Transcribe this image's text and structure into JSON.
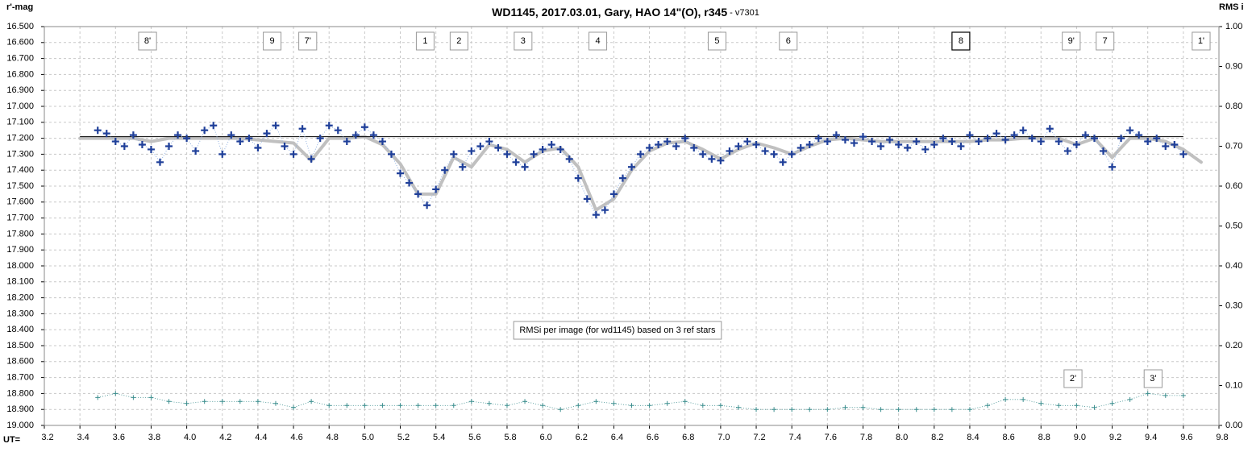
{
  "chart_data": {
    "type": "scatter",
    "title": "WD1145, 2017.03.01,  Gary, HAO 14\"(O), r345",
    "subtitle": " - v7301",
    "y_label": "r'-mag",
    "y2_label": "RMS i",
    "x_label": "UT=",
    "xlim": [
      3.2,
      9.8
    ],
    "ylim": [
      19.0,
      16.5
    ],
    "y2lim": [
      0,
      1
    ],
    "grid": true,
    "xticks": [
      3.2,
      3.4,
      3.6,
      3.8,
      {
        "value": 4,
        "label": "4.0"
      },
      4.2,
      4.4,
      4.6,
      4.8,
      {
        "value": 5,
        "label": "5.0"
      },
      5.2,
      5.4,
      5.6,
      5.8,
      {
        "value": 6,
        "label": "6.0"
      },
      6.2,
      6.4,
      6.6,
      6.8,
      {
        "value": 7,
        "label": "7.0"
      },
      7.2,
      7.4,
      7.6,
      7.8,
      {
        "value": 8,
        "label": "8.0"
      },
      8.2,
      8.4,
      8.6,
      8.8,
      {
        "value": 9,
        "label": "9.0"
      },
      9.2,
      9.4,
      9.6,
      9.8
    ],
    "yticks": [
      {
        "value": 16.5,
        "label": "16.500"
      },
      {
        "value": 16.6,
        "label": "16.600"
      },
      {
        "value": 16.7,
        "label": "16.700"
      },
      {
        "value": 16.8,
        "label": "16.800"
      },
      {
        "value": 16.9,
        "label": "16.900"
      },
      {
        "value": 17.0,
        "label": "17.000"
      },
      {
        "value": 17.1,
        "label": "17.100"
      },
      {
        "value": 17.2,
        "label": "17.200"
      },
      {
        "value": 17.3,
        "label": "17.300"
      },
      {
        "value": 17.4,
        "label": "17.400"
      },
      {
        "value": 17.5,
        "label": "17.500"
      },
      {
        "value": 17.6,
        "label": "17.600"
      },
      {
        "value": 17.7,
        "label": "17.700"
      },
      {
        "value": 17.8,
        "label": "17.800"
      },
      {
        "value": 17.9,
        "label": "17.900"
      },
      {
        "value": 18.0,
        "label": "18.000"
      },
      {
        "value": 18.1,
        "label": "18.100"
      },
      {
        "value": 18.2,
        "label": "18.200"
      },
      {
        "value": 18.3,
        "label": "18.300"
      },
      {
        "value": 18.4,
        "label": "18.400"
      },
      {
        "value": 18.5,
        "label": "18.500"
      },
      {
        "value": 18.6,
        "label": "18.600"
      },
      {
        "value": 18.7,
        "label": "18.700"
      },
      {
        "value": 18.8,
        "label": "18.800"
      },
      {
        "value": 18.9,
        "label": "18.900"
      },
      {
        "value": 19.0,
        "label": "19.000"
      }
    ],
    "y2ticks": [
      {
        "value": 1,
        "label": "1.00"
      },
      {
        "value": 0.9,
        "label": "0.90"
      },
      {
        "value": 0.8,
        "label": "0.80"
      },
      {
        "value": 0.7,
        "label": "0.70"
      },
      {
        "value": 0.6,
        "label": "0.60"
      },
      {
        "value": 0.5,
        "label": "0.50"
      },
      {
        "value": 0.4,
        "label": "0.40"
      },
      {
        "value": 0.3,
        "label": "0.30"
      },
      {
        "value": 0.2,
        "label": "0.20"
      },
      {
        "value": 0.1,
        "label": "0.10"
      },
      {
        "value": 0,
        "label": "0.00"
      }
    ],
    "series": [
      {
        "style": "plus",
        "color": "#1f3f99",
        "x": [
          3.5,
          3.55,
          3.6,
          3.65,
          3.7,
          3.75,
          3.8,
          3.85,
          3.9,
          3.95,
          4.0,
          4.05,
          4.1,
          4.15,
          4.2,
          4.25,
          4.3,
          4.35,
          4.4,
          4.45,
          4.5,
          4.55,
          4.6,
          4.65,
          4.7,
          4.75,
          4.8,
          4.85,
          4.9,
          4.95,
          5.0,
          5.05,
          5.1,
          5.15,
          5.2,
          5.25,
          5.3,
          5.35,
          5.4,
          5.45,
          5.5,
          5.55,
          5.6,
          5.65,
          5.7,
          5.75,
          5.8,
          5.85,
          5.9,
          5.95,
          6.0,
          6.05,
          6.1,
          6.15,
          6.2,
          6.25,
          6.3,
          6.35,
          6.4,
          6.45,
          6.5,
          6.55,
          6.6,
          6.65,
          6.7,
          6.75,
          6.8,
          6.85,
          6.9,
          6.95,
          7.0,
          7.05,
          7.1,
          7.15,
          7.2,
          7.25,
          7.3,
          7.35,
          7.4,
          7.45,
          7.5,
          7.55,
          7.6,
          7.65,
          7.7,
          7.75,
          7.8,
          7.85,
          7.9,
          7.95,
          8.0,
          8.05,
          8.1,
          8.15,
          8.2,
          8.25,
          8.3,
          8.35,
          8.4,
          8.45,
          8.5,
          8.55,
          8.6,
          8.65,
          8.7,
          8.75,
          8.8,
          8.85,
          8.9,
          8.95,
          9.0,
          9.05,
          9.1,
          9.15,
          9.2,
          9.25,
          9.3,
          9.35,
          9.4,
          9.45,
          9.5,
          9.55,
          9.6
        ],
        "values": [
          17.15,
          17.17,
          17.22,
          17.25,
          17.18,
          17.24,
          17.27,
          17.35,
          17.25,
          17.18,
          17.2,
          17.28,
          17.15,
          17.12,
          17.3,
          17.18,
          17.22,
          17.2,
          17.26,
          17.17,
          17.12,
          17.25,
          17.3,
          17.14,
          17.33,
          17.2,
          17.12,
          17.15,
          17.22,
          17.18,
          17.13,
          17.18,
          17.22,
          17.3,
          17.42,
          17.48,
          17.55,
          17.62,
          17.52,
          17.4,
          17.3,
          17.38,
          17.28,
          17.25,
          17.22,
          17.26,
          17.3,
          17.35,
          17.38,
          17.3,
          17.27,
          17.24,
          17.27,
          17.33,
          17.45,
          17.58,
          17.68,
          17.65,
          17.55,
          17.45,
          17.38,
          17.3,
          17.26,
          17.24,
          17.22,
          17.25,
          17.2,
          17.26,
          17.3,
          17.33,
          17.34,
          17.28,
          17.25,
          17.22,
          17.24,
          17.28,
          17.3,
          17.35,
          17.3,
          17.26,
          17.24,
          17.2,
          17.22,
          17.18,
          17.21,
          17.23,
          17.19,
          17.22,
          17.25,
          17.21,
          17.24,
          17.26,
          17.22,
          17.27,
          17.24,
          17.2,
          17.22,
          17.25,
          17.18,
          17.22,
          17.2,
          17.17,
          17.21,
          17.18,
          17.15,
          17.2,
          17.22,
          17.14,
          17.22,
          17.28,
          17.24,
          17.18,
          17.2,
          17.28,
          17.38,
          17.2,
          17.15,
          17.18,
          17.22,
          17.2,
          17.25,
          17.24,
          17.3
        ]
      },
      {
        "style": "curve",
        "color": "#c0c0c0",
        "x": [
          3.4,
          3.5,
          3.6,
          3.7,
          3.8,
          3.9,
          4.0,
          4.1,
          4.2,
          4.3,
          4.4,
          4.5,
          4.6,
          4.7,
          4.8,
          4.9,
          5.0,
          5.1,
          5.2,
          5.3,
          5.4,
          5.5,
          5.6,
          5.7,
          5.8,
          5.9,
          6.0,
          6.1,
          6.2,
          6.3,
          6.4,
          6.5,
          6.6,
          6.7,
          6.8,
          6.9,
          7.0,
          7.1,
          7.2,
          7.3,
          7.4,
          7.5,
          7.6,
          7.7,
          7.8,
          7.9,
          8.0,
          8.1,
          8.2,
          8.3,
          8.4,
          8.5,
          8.6,
          8.7,
          8.8,
          8.9,
          9.0,
          9.1,
          9.2,
          9.3,
          9.4,
          9.5,
          9.6,
          9.7
        ],
        "values": [
          17.2,
          17.2,
          17.2,
          17.2,
          17.22,
          17.2,
          17.2,
          17.2,
          17.2,
          17.2,
          17.21,
          17.22,
          17.23,
          17.34,
          17.2,
          17.2,
          17.19,
          17.24,
          17.36,
          17.55,
          17.55,
          17.32,
          17.38,
          17.24,
          17.27,
          17.35,
          17.28,
          17.26,
          17.38,
          17.65,
          17.58,
          17.4,
          17.28,
          17.23,
          17.22,
          17.27,
          17.33,
          17.27,
          17.23,
          17.26,
          17.3,
          17.25,
          17.21,
          17.2,
          17.21,
          17.22,
          17.22,
          17.22,
          17.22,
          17.22,
          17.22,
          17.21,
          17.21,
          17.2,
          17.2,
          17.2,
          17.24,
          17.2,
          17.32,
          17.2,
          17.2,
          17.22,
          17.27,
          17.35
        ]
      },
      {
        "style": "line",
        "color": "#000000",
        "x": [
          3.4,
          9.6
        ],
        "values": [
          17.19,
          17.19
        ]
      },
      {
        "style": "smallplus",
        "color": "#3d8f8f",
        "axis": "y2",
        "x": [
          3.5,
          3.6,
          3.7,
          3.8,
          3.9,
          4.0,
          4.1,
          4.2,
          4.3,
          4.4,
          4.5,
          4.6,
          4.7,
          4.8,
          4.9,
          5.0,
          5.1,
          5.2,
          5.3,
          5.4,
          5.5,
          5.6,
          5.7,
          5.8,
          5.9,
          6.0,
          6.1,
          6.2,
          6.3,
          6.4,
          6.5,
          6.6,
          6.7,
          6.8,
          6.9,
          7.0,
          7.1,
          7.2,
          7.3,
          7.4,
          7.5,
          7.6,
          7.7,
          7.8,
          7.9,
          8.0,
          8.1,
          8.2,
          8.3,
          8.4,
          8.5,
          8.6,
          8.7,
          8.8,
          8.9,
          9.0,
          9.1,
          9.2,
          9.3,
          9.4,
          9.5,
          9.6
        ],
        "values": [
          0.07,
          0.08,
          0.07,
          0.07,
          0.06,
          0.055,
          0.06,
          0.06,
          0.06,
          0.06,
          0.055,
          0.045,
          0.06,
          0.05,
          0.05,
          0.05,
          0.05,
          0.05,
          0.05,
          0.05,
          0.05,
          0.06,
          0.055,
          0.05,
          0.06,
          0.05,
          0.04,
          0.05,
          0.06,
          0.055,
          0.05,
          0.05,
          0.055,
          0.06,
          0.05,
          0.05,
          0.045,
          0.04,
          0.04,
          0.04,
          0.04,
          0.04,
          0.045,
          0.045,
          0.04,
          0.04,
          0.04,
          0.04,
          0.04,
          0.04,
          0.05,
          0.065,
          0.065,
          0.055,
          0.05,
          0.05,
          0.045,
          0.055,
          0.065,
          0.08,
          0.075,
          0.075
        ]
      }
    ],
    "annotations": [
      {
        "text": "8'",
        "x": 3.78
      },
      {
        "text": "9",
        "x": 4.48
      },
      {
        "text": "7'",
        "x": 4.68
      },
      {
        "text": "1",
        "x": 5.34
      },
      {
        "text": "2",
        "x": 5.53
      },
      {
        "text": "3",
        "x": 5.89
      },
      {
        "text": "4",
        "x": 6.31
      },
      {
        "text": "5",
        "x": 6.98
      },
      {
        "text": "6",
        "x": 7.38
      },
      {
        "text": "8",
        "x": 8.35
      },
      {
        "text": "9'",
        "x": 8.97
      },
      {
        "text": "7",
        "x": 9.16
      },
      {
        "text": "1'",
        "x": 9.7
      }
    ],
    "rms_annotations": [
      {
        "text": "2'",
        "x": 8.98
      },
      {
        "text": "3'",
        "x": 9.43
      }
    ],
    "note": "RMSi per image (for wd1145) based on 3 ref stars"
  }
}
